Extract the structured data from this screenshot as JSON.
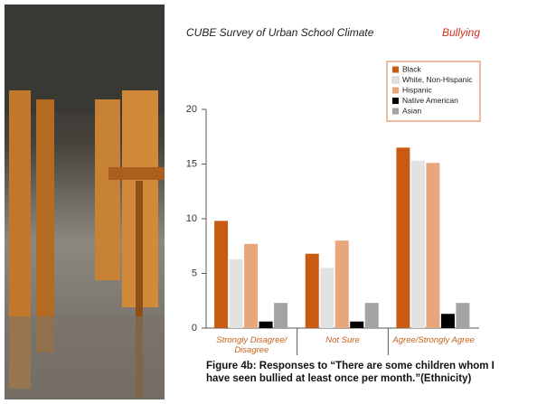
{
  "header": {
    "title": "CUBE Survey of Urban School Climate",
    "topic": "Bullying"
  },
  "chart_data": {
    "type": "bar",
    "categories": [
      "Strongly Disagree/ Disagree",
      "Not Sure",
      "Agree/Strongly Agree"
    ],
    "series": [
      {
        "name": "Black",
        "color": "#c85a12",
        "values": [
          9.8,
          6.8,
          16.5
        ]
      },
      {
        "name": "White, Non-Hispanic",
        "color": "#e2e2e2",
        "values": [
          6.3,
          5.5,
          15.3
        ]
      },
      {
        "name": "Hispanic",
        "color": "#e8a67c",
        "values": [
          7.7,
          8.0,
          15.1
        ]
      },
      {
        "name": "Native American",
        "color": "#000000",
        "values": [
          0.6,
          0.6,
          1.3
        ]
      },
      {
        "name": "Asian",
        "color": "#a3a3a3",
        "values": [
          2.3,
          2.3,
          2.3
        ]
      }
    ],
    "ylim": [
      0,
      20
    ],
    "yticks": [
      0,
      5,
      10,
      15,
      20
    ],
    "legend": "upper right",
    "caption": "Figure 4b: Responses to “There are some children whom I have seen bullied at least once per month.”(Ethnicity)"
  }
}
